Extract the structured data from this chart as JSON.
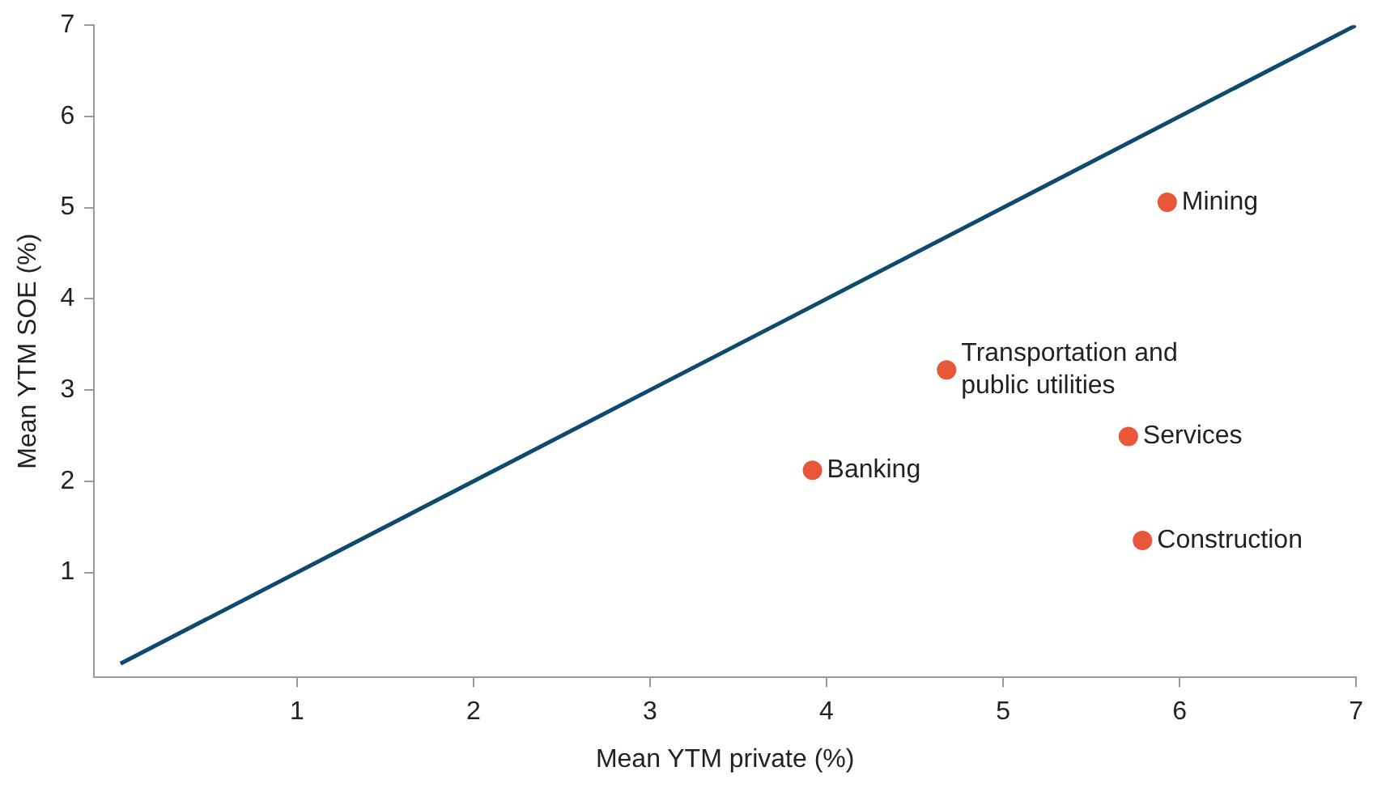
{
  "chart_data": {
    "type": "scatter",
    "xlabel": "Mean YTM private (%)",
    "ylabel": "Mean YTM SOE (%)",
    "xlim": [
      -0.15,
      7
    ],
    "ylim": [
      -0.15,
      7
    ],
    "xticks": [
      1,
      2,
      3,
      4,
      5,
      6,
      7
    ],
    "yticks": [
      1,
      2,
      3,
      4,
      5,
      6,
      7
    ],
    "grid": false,
    "legend": false,
    "series": [
      {
        "marker": "circle",
        "color": "#e8573a",
        "x": [
          5.93,
          4.68,
          5.71,
          3.92,
          5.79
        ],
        "values": [
          5.06,
          3.22,
          2.49,
          2.12,
          1.35
        ]
      },
      {
        "type": "line",
        "marker": "none",
        "color": "#0d4a6e",
        "x": [
          0,
          7
        ],
        "values": [
          0,
          7
        ]
      }
    ],
    "annotations": [
      {
        "text": "Mining",
        "x": 5.93,
        "y": 5.06
      },
      {
        "text": "Transportation and public utilities",
        "x": 4.68,
        "y": 3.22
      },
      {
        "text": "Services",
        "x": 5.71,
        "y": 2.49
      },
      {
        "text": "Banking",
        "x": 3.92,
        "y": 2.12
      },
      {
        "text": "Construction",
        "x": 5.79,
        "y": 1.35
      }
    ]
  }
}
